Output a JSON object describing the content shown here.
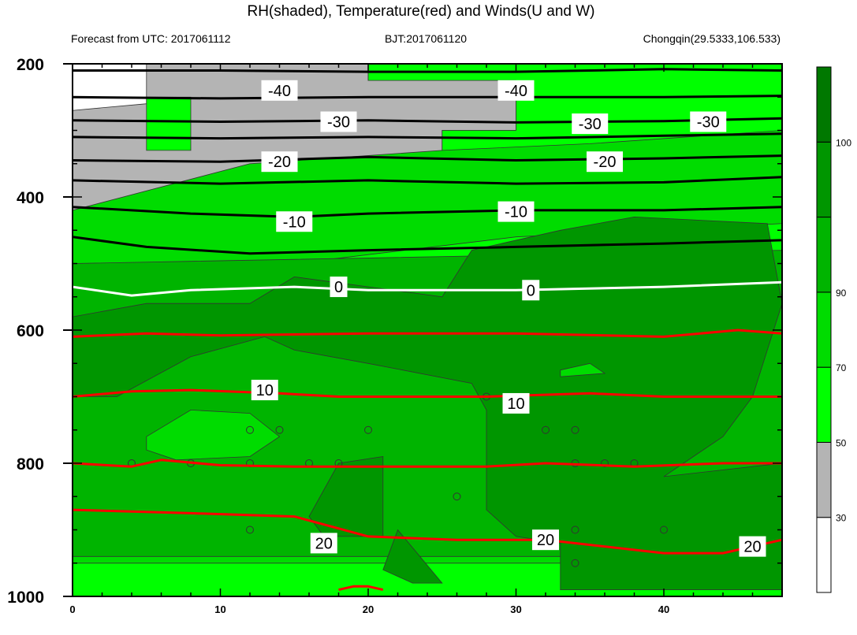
{
  "chart_data": {
    "type": "heatmap",
    "title": "RH(shaded), Temperature(red) and Winds(U and W)",
    "subtitle_left": "Forecast from UTC: 2017061112",
    "subtitle_center": "BJT:2017061120",
    "subtitle_right": "Chongqin(29.5333,106.533)",
    "x": {
      "ticks": [
        0,
        10,
        20,
        30,
        40
      ],
      "tick_labels": [
        "0",
        "10",
        "20",
        "30",
        "40"
      ],
      "range": [
        0,
        48
      ]
    },
    "y": {
      "ticks": [
        200,
        400,
        600,
        800,
        1000
      ],
      "tick_labels": [
        "200",
        "400",
        "600",
        "800",
        "1000"
      ],
      "range": [
        200,
        1000
      ],
      "inverted": true
    },
    "colorbar": {
      "levels": [
        30,
        50,
        70,
        90,
        100
      ],
      "labels": [
        "30",
        "50",
        "70",
        "90",
        "100"
      ],
      "colors": [
        "#ffffff",
        "#b4b4b4",
        "#00ff00",
        "#00dc00",
        "#00b400",
        "#009600",
        "#007800"
      ]
    },
    "rh_regions": [
      {
        "level": 1,
        "points": [
          [
            5,
            200
          ],
          [
            20,
            200
          ],
          [
            20,
            225
          ],
          [
            30,
            225
          ],
          [
            30,
            300
          ],
          [
            25,
            300
          ],
          [
            25,
            350
          ],
          [
            30,
            380
          ],
          [
            15,
            390
          ],
          [
            5,
            420
          ],
          [
            0,
            450
          ],
          [
            0,
            270
          ],
          [
            5,
            260
          ]
        ]
      },
      {
        "level": 1,
        "points": [
          [
            41,
            200
          ],
          [
            48,
            200
          ],
          [
            48,
            250
          ],
          [
            44,
            250
          ],
          [
            41,
            230
          ]
        ]
      },
      {
        "level": 1,
        "points": [
          [
            0,
            990
          ],
          [
            48,
            985
          ],
          [
            48,
            955
          ],
          [
            0,
            955
          ]
        ]
      },
      {
        "level": 2,
        "points": [
          [
            20,
            200
          ],
          [
            48,
            200
          ],
          [
            48,
            1000
          ],
          [
            0,
            1000
          ],
          [
            0,
            450
          ],
          [
            5,
            420
          ],
          [
            15,
            390
          ],
          [
            30,
            380
          ],
          [
            25,
            350
          ],
          [
            25,
            300
          ],
          [
            30,
            300
          ],
          [
            30,
            225
          ],
          [
            20,
            225
          ]
        ]
      },
      {
        "level": 2,
        "points": [
          [
            5,
            250
          ],
          [
            8,
            250
          ],
          [
            8,
            330
          ],
          [
            5,
            330
          ]
        ]
      },
      {
        "level": 3,
        "points": [
          [
            0,
            420
          ],
          [
            12,
            350
          ],
          [
            25,
            330
          ],
          [
            35,
            320
          ],
          [
            48,
            300
          ],
          [
            48,
            440
          ],
          [
            30,
            460
          ],
          [
            15,
            500
          ],
          [
            0,
            520
          ]
        ]
      },
      {
        "level": 3,
        "points": [
          [
            0,
            550
          ],
          [
            48,
            530
          ],
          [
            48,
            950
          ],
          [
            0,
            950
          ]
        ]
      },
      {
        "level": 4,
        "points": [
          [
            0,
            500
          ],
          [
            48,
            480
          ],
          [
            48,
            940
          ],
          [
            0,
            940
          ]
        ]
      },
      {
        "level": 5,
        "points": [
          [
            0,
            580
          ],
          [
            5,
            560
          ],
          [
            12,
            560
          ],
          [
            15,
            520
          ],
          [
            25,
            550
          ],
          [
            27,
            480
          ],
          [
            33,
            450
          ],
          [
            38,
            430
          ],
          [
            47,
            440
          ],
          [
            48,
            560
          ],
          [
            46,
            700
          ],
          [
            44,
            760
          ],
          [
            42,
            790
          ],
          [
            40,
            820
          ],
          [
            48,
            800
          ],
          [
            48,
            990
          ],
          [
            33,
            990
          ],
          [
            33,
            920
          ],
          [
            30,
            910
          ],
          [
            28,
            870
          ],
          [
            28,
            720
          ],
          [
            27,
            680
          ],
          [
            20,
            650
          ],
          [
            15,
            630
          ],
          [
            13,
            610
          ],
          [
            8,
            640
          ],
          [
            3,
            700
          ],
          [
            0,
            700
          ]
        ]
      },
      {
        "level": 5,
        "points": [
          [
            18,
            800
          ],
          [
            21,
            790
          ],
          [
            21,
            910
          ],
          [
            17,
            910
          ],
          [
            16,
            880
          ]
        ]
      },
      {
        "level": 5,
        "points": [
          [
            22,
            900
          ],
          [
            25,
            980
          ],
          [
            23,
            980
          ],
          [
            21,
            960
          ]
        ]
      },
      {
        "level": 3,
        "points": [
          [
            5,
            760
          ],
          [
            8,
            720
          ],
          [
            12,
            725
          ],
          [
            14,
            760
          ],
          [
            12,
            790
          ],
          [
            7,
            795
          ],
          [
            5,
            780
          ]
        ]
      },
      {
        "level": 3,
        "points": [
          [
            33,
            660
          ],
          [
            35,
            650
          ],
          [
            36,
            665
          ],
          [
            33,
            670
          ]
        ]
      }
    ],
    "temperature_contours": [
      {
        "label": "-40",
        "color": "#000000",
        "points": [
          [
            0,
            210
          ],
          [
            10,
            210
          ],
          [
            20,
            212
          ],
          [
            30,
            212
          ],
          [
            40,
            208
          ],
          [
            48,
            210
          ]
        ]
      },
      {
        "label": "-40",
        "color": "#000000",
        "points": [
          [
            0,
            250
          ],
          [
            10,
            252
          ],
          [
            20,
            250
          ],
          [
            30,
            250
          ],
          [
            40,
            250
          ],
          [
            48,
            248
          ]
        ]
      },
      {
        "label": "-30",
        "color": "#000000",
        "points": [
          [
            0,
            285
          ],
          [
            10,
            287
          ],
          [
            20,
            285
          ],
          [
            30,
            288
          ],
          [
            40,
            286
          ],
          [
            48,
            282
          ]
        ]
      },
      {
        "label": "-30",
        "color": "#000000",
        "points": [
          [
            0,
            310
          ],
          [
            10,
            312
          ],
          [
            20,
            310
          ],
          [
            30,
            312
          ],
          [
            40,
            308
          ],
          [
            48,
            305
          ]
        ]
      },
      {
        "label": "-20",
        "color": "#000000",
        "points": [
          [
            0,
            345
          ],
          [
            10,
            347
          ],
          [
            20,
            340
          ],
          [
            30,
            345
          ],
          [
            40,
            342
          ],
          [
            48,
            338
          ]
        ]
      },
      {
        "label": "-20",
        "color": "#000000",
        "points": [
          [
            0,
            375
          ],
          [
            10,
            380
          ],
          [
            20,
            375
          ],
          [
            30,
            380
          ],
          [
            40,
            378
          ],
          [
            48,
            370
          ]
        ]
      },
      {
        "label": "-10",
        "color": "#000000",
        "points": [
          [
            0,
            415
          ],
          [
            8,
            425
          ],
          [
            15,
            430
          ],
          [
            20,
            425
          ],
          [
            30,
            420
          ],
          [
            40,
            420
          ],
          [
            48,
            415
          ]
        ]
      },
      {
        "label": "-10",
        "color": "#000000",
        "points": [
          [
            0,
            460
          ],
          [
            5,
            475
          ],
          [
            12,
            485
          ],
          [
            20,
            480
          ],
          [
            30,
            475
          ],
          [
            40,
            470
          ],
          [
            48,
            465
          ]
        ]
      },
      {
        "label": "0",
        "color": "#ffffff",
        "points": [
          [
            0,
            535
          ],
          [
            4,
            548
          ],
          [
            8,
            540
          ],
          [
            15,
            535
          ],
          [
            20,
            540
          ],
          [
            30,
            540
          ],
          [
            40,
            535
          ],
          [
            48,
            528
          ]
        ]
      },
      {
        "label": "",
        "color": "#ff0000",
        "points": [
          [
            0,
            610
          ],
          [
            5,
            605
          ],
          [
            10,
            608
          ],
          [
            20,
            605
          ],
          [
            30,
            605
          ],
          [
            40,
            610
          ],
          [
            45,
            600
          ],
          [
            48,
            605
          ]
        ]
      },
      {
        "label": "10",
        "color": "#ff0000",
        "points": [
          [
            0,
            700
          ],
          [
            4,
            692
          ],
          [
            8,
            690
          ],
          [
            14,
            695
          ],
          [
            18,
            700
          ],
          [
            28,
            700
          ],
          [
            35,
            695
          ],
          [
            40,
            700
          ],
          [
            48,
            700
          ]
        ]
      },
      {
        "label": "",
        "color": "#ff0000",
        "points": [
          [
            0,
            800
          ],
          [
            4,
            805
          ],
          [
            6,
            795
          ],
          [
            10,
            803
          ],
          [
            15,
            805
          ],
          [
            20,
            805
          ],
          [
            28,
            805
          ],
          [
            32,
            800
          ],
          [
            38,
            805
          ],
          [
            44,
            800
          ],
          [
            48,
            800
          ]
        ]
      },
      {
        "label": "20",
        "color": "#ff0000",
        "points": [
          [
            0,
            870
          ],
          [
            8,
            875
          ],
          [
            15,
            880
          ],
          [
            20,
            910
          ],
          [
            26,
            915
          ],
          [
            32,
            915
          ],
          [
            40,
            935
          ],
          [
            44,
            935
          ],
          [
            48,
            915
          ]
        ]
      },
      {
        "label": "",
        "color": "#ff0000",
        "points": [
          [
            18,
            990
          ],
          [
            19,
            985
          ],
          [
            20,
            985
          ],
          [
            21,
            990
          ]
        ]
      }
    ],
    "contour_labels": [
      {
        "text": "-40",
        "x": 14,
        "y": 240
      },
      {
        "text": "-40",
        "x": 30,
        "y": 240
      },
      {
        "text": "-30",
        "x": 18,
        "y": 287
      },
      {
        "text": "-30",
        "x": 35,
        "y": 290
      },
      {
        "text": "-30",
        "x": 43,
        "y": 287
      },
      {
        "text": "-20",
        "x": 14,
        "y": 347
      },
      {
        "text": "-20",
        "x": 36,
        "y": 347
      },
      {
        "text": "-10",
        "x": 15,
        "y": 437
      },
      {
        "text": "-10",
        "x": 30,
        "y": 422
      },
      {
        "text": "0",
        "x": 18,
        "y": 535
      },
      {
        "text": "0",
        "x": 31,
        "y": 540
      },
      {
        "text": "10",
        "x": 13,
        "y": 690
      },
      {
        "text": "10",
        "x": 30,
        "y": 710
      },
      {
        "text": "20",
        "x": 17,
        "y": 920
      },
      {
        "text": "20",
        "x": 32,
        "y": 915
      },
      {
        "text": "20",
        "x": 46,
        "y": 925
      }
    ],
    "calm_points": [
      [
        4,
        800
      ],
      [
        8,
        800
      ],
      [
        12,
        800
      ],
      [
        16,
        800
      ],
      [
        18,
        800
      ],
      [
        12,
        750
      ],
      [
        14,
        750
      ],
      [
        20,
        750
      ],
      [
        32,
        750
      ],
      [
        34,
        750
      ],
      [
        34,
        800
      ],
      [
        36,
        800
      ],
      [
        38,
        800
      ],
      [
        12,
        900
      ],
      [
        26,
        850
      ],
      [
        34,
        900
      ],
      [
        34,
        950
      ],
      [
        40,
        900
      ],
      [
        28,
        700
      ]
    ]
  }
}
